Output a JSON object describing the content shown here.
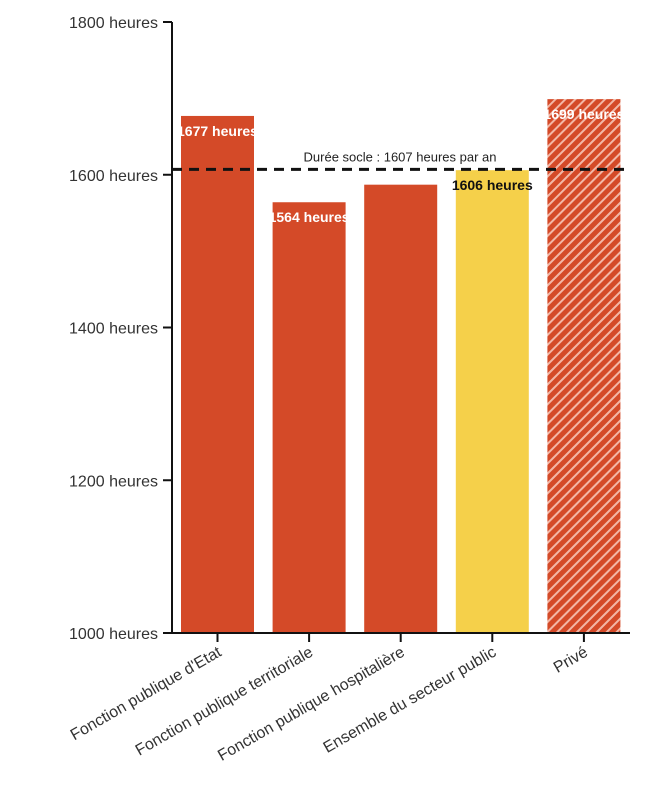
{
  "chart_data": {
    "type": "bar",
    "categories": [
      "Fonction publique d'Etat",
      "Fonction publique territoriale",
      "Fonction publique hospitalière",
      "Ensemble du secteur public",
      "Privé"
    ],
    "values": [
      1677,
      1564,
      1587,
      1606,
      1699
    ],
    "value_labels": [
      "1677 heures",
      "1564 heures",
      "",
      "1606 heures",
      "1699 heures"
    ],
    "bar_colors": [
      "#d44a28",
      "#d44a28",
      "#d44a28",
      "#f5d04a",
      "#d44a28"
    ],
    "hatched": [
      false,
      false,
      false,
      false,
      true
    ],
    "ylim": [
      1000,
      1800
    ],
    "yticks": [
      1000,
      1200,
      1400,
      1600,
      1800
    ],
    "ytick_labels": [
      "1000 heures",
      "1200 heures",
      "1400 heures",
      "1600 heures",
      "1800 heures"
    ],
    "reference_line": {
      "value": 1607,
      "label": "Durée socle : 1607 heures par an"
    },
    "grid": false,
    "legend": "none"
  }
}
